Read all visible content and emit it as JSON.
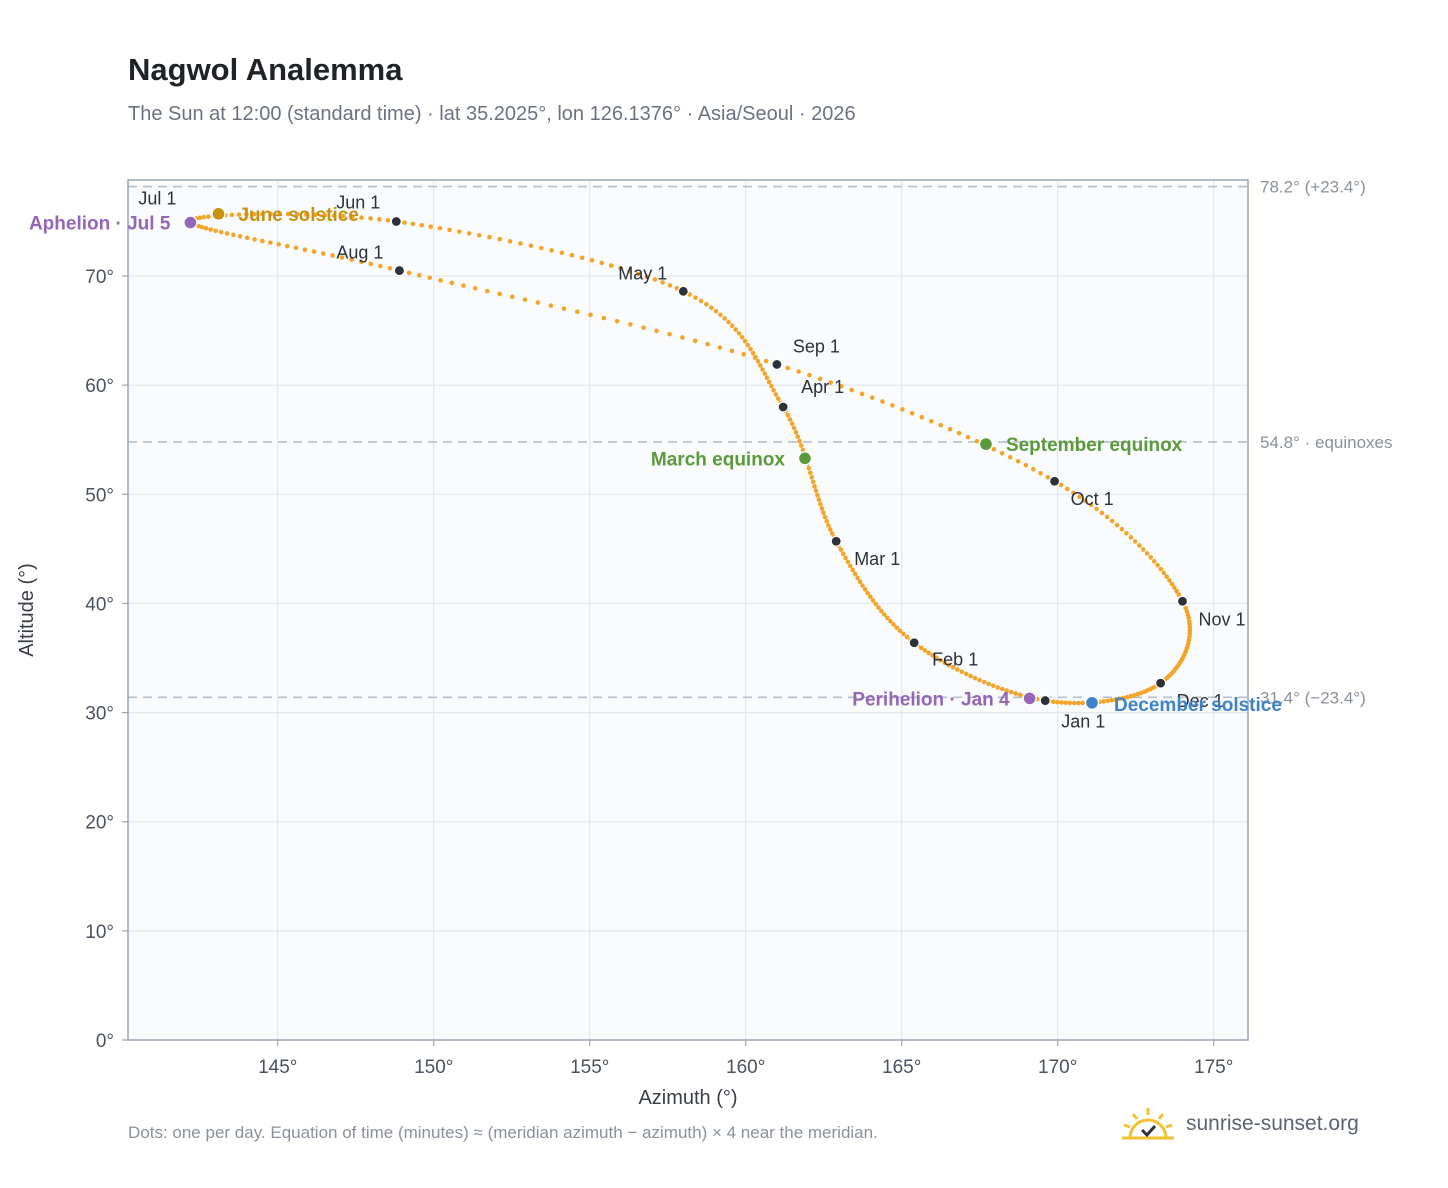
{
  "header": {
    "title": "Nagwol Analemma",
    "subtitle": "The Sun at 12:00 (standard time) · lat 35.2025°, lon 126.1376° · Asia/Seoul · 2026"
  },
  "footer": {
    "note": "Dots: one per day. Equation of time (minutes) ≈ (meridian azimuth − azimuth) × 4 near the meridian.",
    "brand": "sunrise-sunset.org",
    "brand_icon": "sunrise-logo-icon"
  },
  "colors": {
    "path": "#f2a52a",
    "month_marker": "#2d3139",
    "solstice_june": "#c8920f",
    "equinox": "#5a9a3a",
    "solstice_december": "#3e82c8",
    "apsis": "#9566b8",
    "plot_bg": "#f9fbfd",
    "grid": "#e3e7ec",
    "reference_line": "#b4c0cc"
  },
  "chart_data": {
    "type": "scatter",
    "xlabel": "Azimuth (°)",
    "ylabel": "Altitude (°)",
    "xlim": [
      140.2,
      176.1
    ],
    "ylim": [
      0,
      78.8
    ],
    "x_ticks": [
      145,
      150,
      155,
      160,
      165,
      170,
      175
    ],
    "x_tick_labels": [
      "145°",
      "150°",
      "155°",
      "160°",
      "165°",
      "170°",
      "175°"
    ],
    "y_ticks": [
      0,
      10,
      20,
      30,
      40,
      50,
      60,
      70
    ],
    "y_tick_labels": [
      "0°",
      "10°",
      "20°",
      "30°",
      "40°",
      "50°",
      "60°",
      "70°"
    ],
    "grid": true,
    "reference_lines": [
      {
        "y": 78.2,
        "label": "78.2° (+23.4°)"
      },
      {
        "y": 54.8,
        "label": "54.8° · equinoxes"
      },
      {
        "y": 31.4,
        "label": "31.4° (−23.4°)"
      }
    ],
    "series": [
      {
        "points_per": "day",
        "x": [
          169.6,
          165.4,
          162.9,
          161.2,
          158.0,
          148.8,
          142.2,
          148.9,
          161.0,
          169.9,
          174.0,
          173.3,
          169.6
        ],
        "y": [
          31.1,
          36.4,
          45.7,
          58.0,
          68.6,
          75.0,
          75.0,
          70.5,
          61.9,
          51.2,
          40.2,
          32.7,
          31.1
        ],
        "anchor_days": [
          1,
          32,
          60,
          91,
          121,
          152,
          182,
          213,
          244,
          274,
          305,
          335,
          366
        ]
      }
    ],
    "month_markers": [
      {
        "label": "Jan 1",
        "x": 169.6,
        "y": 31.1
      },
      {
        "label": "Feb 1",
        "x": 165.4,
        "y": 36.4
      },
      {
        "label": "Mar 1",
        "x": 162.9,
        "y": 45.7
      },
      {
        "label": "Apr 1",
        "x": 161.2,
        "y": 58.0
      },
      {
        "label": "May 1",
        "x": 158.0,
        "y": 68.6
      },
      {
        "label": "Jun 1",
        "x": 148.8,
        "y": 75.0
      },
      {
        "label": "Jul 1",
        "x": 142.2,
        "y": 75.0
      },
      {
        "label": "Aug 1",
        "x": 148.9,
        "y": 70.5
      },
      {
        "label": "Sep 1",
        "x": 161.0,
        "y": 61.9
      },
      {
        "label": "Oct 1",
        "x": 169.9,
        "y": 51.2
      },
      {
        "label": "Nov 1",
        "x": 174.0,
        "y": 40.2
      },
      {
        "label": "Dec 1",
        "x": 173.3,
        "y": 32.7
      }
    ],
    "events": [
      {
        "label": "June solstice",
        "x": 143.1,
        "y": 75.7,
        "kind": "solstice_june"
      },
      {
        "label": "Aphelion · Jul 5",
        "x": 142.2,
        "y": 74.9,
        "kind": "apsis"
      },
      {
        "label": "March equinox",
        "x": 161.9,
        "y": 53.3,
        "kind": "equinox"
      },
      {
        "label": "September equinox",
        "x": 167.7,
        "y": 54.6,
        "kind": "equinox"
      },
      {
        "label": "Perihelion · Jan 4",
        "x": 169.1,
        "y": 31.3,
        "kind": "apsis"
      },
      {
        "label": "December solstice",
        "x": 171.1,
        "y": 30.9,
        "kind": "solstice_december"
      }
    ]
  }
}
